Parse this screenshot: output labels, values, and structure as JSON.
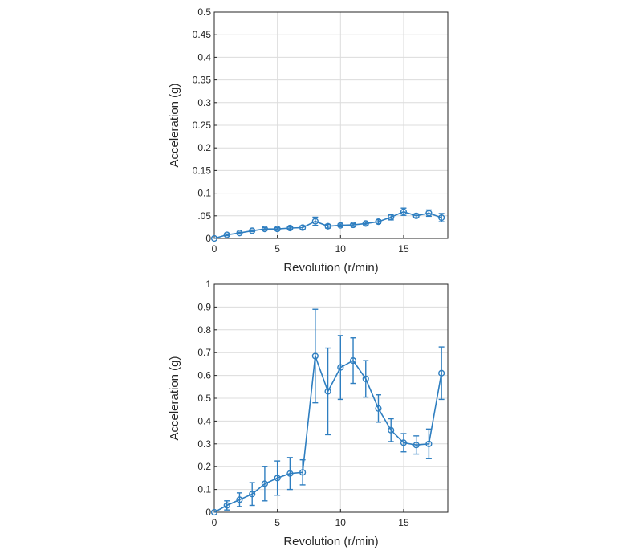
{
  "colors": {
    "series": "#2e7ec0",
    "axis": "#262626",
    "grid": "#dcdcdc"
  },
  "chart_data": [
    {
      "type": "line",
      "panel": "top",
      "xlabel": "Revolution (r/min)",
      "ylabel": "Acceleration (g)",
      "xlim": [
        0,
        18.5
      ],
      "ylim": [
        0,
        0.5
      ],
      "xticks": [
        0,
        5,
        10,
        15
      ],
      "xtick_labels": [
        "0",
        "5",
        "10",
        "15"
      ],
      "yticks": [
        0,
        0.05,
        0.1,
        0.15,
        0.2,
        0.25,
        0.3,
        0.35,
        0.4,
        0.45,
        0.5
      ],
      "ytick_labels": [
        "0",
        ".05",
        "0.1",
        "0.15",
        "0.2",
        "0.25",
        "0.3",
        "0.35",
        "0.4",
        "0.45",
        "0.5"
      ],
      "grid": true,
      "marker": "circle",
      "error_bars": true,
      "x": [
        0,
        1,
        2,
        3,
        4,
        5,
        6,
        7,
        8,
        9,
        10,
        11,
        12,
        13,
        14,
        15,
        16,
        17,
        18
      ],
      "y": [
        0.0,
        0.008,
        0.012,
        0.017,
        0.021,
        0.021,
        0.023,
        0.024,
        0.038,
        0.027,
        0.029,
        0.03,
        0.033,
        0.037,
        0.047,
        0.059,
        0.05,
        0.056,
        0.046
      ],
      "err": [
        0.0,
        0.002,
        0.002,
        0.002,
        0.003,
        0.003,
        0.003,
        0.004,
        0.009,
        0.004,
        0.003,
        0.003,
        0.003,
        0.004,
        0.006,
        0.008,
        0.004,
        0.007,
        0.009
      ]
    },
    {
      "type": "line",
      "panel": "bottom",
      "xlabel": "Revolution (r/min)",
      "ylabel": "Acceleration (g)",
      "xlim": [
        0,
        18.5
      ],
      "ylim": [
        0,
        1
      ],
      "xticks": [
        0,
        5,
        10,
        15
      ],
      "xtick_labels": [
        "0",
        "5",
        "10",
        "15"
      ],
      "yticks": [
        0,
        0.1,
        0.2,
        0.3,
        0.4,
        0.5,
        0.6,
        0.7,
        0.8,
        0.9,
        1
      ],
      "ytick_labels": [
        "0",
        "0.1",
        "0.2",
        "0.3",
        "0.4",
        "0.5",
        "0.6",
        "0.7",
        "0.8",
        "0.9",
        "1"
      ],
      "grid": true,
      "marker": "circle",
      "error_bars": true,
      "x": [
        0,
        1,
        2,
        3,
        4,
        5,
        6,
        7,
        8,
        9,
        10,
        11,
        12,
        13,
        14,
        15,
        16,
        17,
        18
      ],
      "y": [
        0.0,
        0.03,
        0.055,
        0.08,
        0.125,
        0.15,
        0.17,
        0.175,
        0.685,
        0.53,
        0.635,
        0.665,
        0.585,
        0.455,
        0.36,
        0.305,
        0.295,
        0.3,
        0.61
      ],
      "err": [
        0.0,
        0.02,
        0.03,
        0.05,
        0.075,
        0.075,
        0.07,
        0.055,
        0.205,
        0.19,
        0.14,
        0.1,
        0.08,
        0.06,
        0.05,
        0.04,
        0.04,
        0.065,
        0.115
      ]
    }
  ]
}
